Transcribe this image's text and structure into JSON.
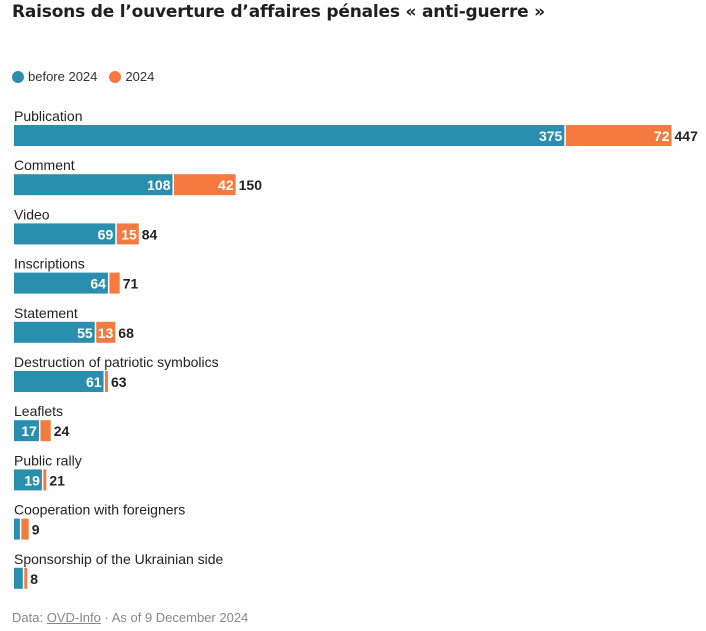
{
  "title": "Raisons de l’ouverture d’affaires pénales « anti-guerre »",
  "legend": [
    {
      "label": "before 2024",
      "color": "#2a8fae"
    },
    {
      "label": "2024",
      "color": "#f57a40"
    }
  ],
  "chart_data": {
    "type": "bar",
    "orientation": "horizontal",
    "stacked": true,
    "categories": [
      "Publication",
      "Comment",
      "Video",
      "Inscriptions",
      "Statement",
      "Destruction of patriotic symbolics",
      "Leaflets",
      "Public rally",
      "Cooperation with foreigners",
      "Sponsorship of the Ukrainian side"
    ],
    "series": [
      {
        "name": "before 2024",
        "color": "#2a8fae",
        "values": [
          375,
          108,
          69,
          64,
          55,
          61,
          17,
          19,
          4,
          6
        ]
      },
      {
        "name": "2024",
        "color": "#f57a40",
        "values": [
          72,
          42,
          15,
          7,
          13,
          2,
          7,
          2,
          5,
          2
        ]
      }
    ],
    "totals": [
      447,
      150,
      84,
      71,
      68,
      63,
      24,
      21,
      9,
      8
    ],
    "xlim": [
      0,
      447
    ],
    "grid": false,
    "legend_position": "top-left"
  },
  "footer": {
    "prefix": "Data: ",
    "source": "OVD-Info",
    "suffix": " · As of 9 December 2024"
  }
}
